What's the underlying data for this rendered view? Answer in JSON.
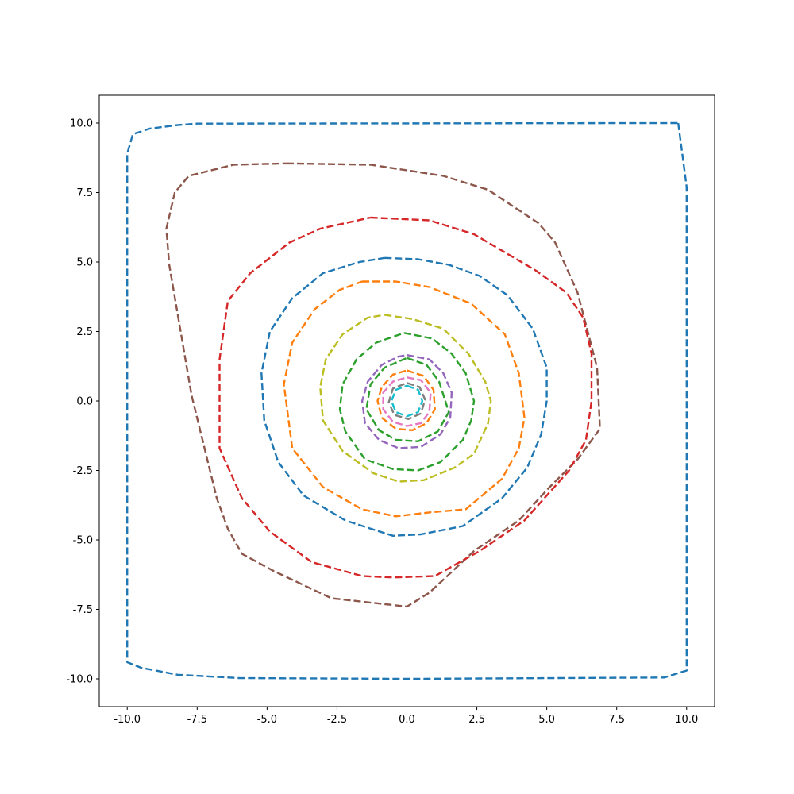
{
  "chart_data": {
    "type": "line",
    "title": "",
    "xlabel": "",
    "ylabel": "",
    "xlim": [
      -11,
      11
    ],
    "ylim": [
      -11,
      11
    ],
    "grid": false,
    "legend": "none",
    "line_style": "dashed",
    "x_ticks": [
      -10.0,
      -7.5,
      -5.0,
      -2.5,
      0.0,
      2.5,
      5.0,
      7.5,
      10.0
    ],
    "y_ticks": [
      -10.0,
      -7.5,
      -5.0,
      -2.5,
      0.0,
      2.5,
      5.0,
      7.5,
      10.0
    ],
    "x_tick_labels": [
      "-10.0",
      "-7.5",
      "-5.0",
      "-2.5",
      "0.0",
      "2.5",
      "5.0",
      "7.5",
      "10.0"
    ],
    "y_tick_labels": [
      "-10.0",
      "-7.5",
      "-5.0",
      "-2.5",
      "0.0",
      "2.5",
      "5.0",
      "7.5",
      "10.0"
    ],
    "series": [
      {
        "color": "#1f77b4",
        "points": [
          [
            9.7,
            10.0
          ],
          [
            10.0,
            7.7
          ],
          [
            10.0,
            -9.7
          ],
          [
            9.2,
            -9.95
          ],
          [
            0,
            -10.0
          ],
          [
            -6,
            -9.97
          ],
          [
            -8.2,
            -9.85
          ],
          [
            -9.5,
            -9.6
          ],
          [
            -10.0,
            -9.4
          ],
          [
            -10.0,
            8.9
          ],
          [
            -9.8,
            9.6
          ],
          [
            -9.2,
            9.8
          ],
          [
            -8.2,
            9.93
          ],
          [
            -7.5,
            9.98
          ],
          [
            9.7,
            10.0
          ]
        ]
      },
      {
        "color": "#8c564b",
        "points": [
          [
            -4.3,
            8.55
          ],
          [
            -1.3,
            8.5
          ],
          [
            1.3,
            8.1
          ],
          [
            2.9,
            7.6
          ],
          [
            4.7,
            6.4
          ],
          [
            5.3,
            5.7
          ],
          [
            6.1,
            3.9
          ],
          [
            6.8,
            1.2
          ],
          [
            6.9,
            -1.0
          ],
          [
            6.1,
            -2.1
          ],
          [
            5.1,
            -3.1
          ],
          [
            4.0,
            -4.3
          ],
          [
            2.4,
            -5.4
          ],
          [
            0.8,
            -6.9
          ],
          [
            0,
            -7.4
          ],
          [
            -2.7,
            -7.1
          ],
          [
            -4.8,
            -6.1
          ],
          [
            -5.9,
            -5.5
          ],
          [
            -6.4,
            -4.6
          ],
          [
            -6.8,
            -3.5
          ],
          [
            -7.7,
            0.2
          ],
          [
            -8.5,
            4.9
          ],
          [
            -8.6,
            6.2
          ],
          [
            -8.3,
            7.5
          ],
          [
            -7.8,
            8.1
          ],
          [
            -6.2,
            8.5
          ],
          [
            -4.3,
            8.55
          ]
        ]
      },
      {
        "color": "#d62728",
        "points": [
          [
            -1.3,
            6.6
          ],
          [
            0.8,
            6.5
          ],
          [
            2.4,
            6.0
          ],
          [
            4.6,
            4.7
          ],
          [
            5.7,
            3.9
          ],
          [
            6.3,
            3.0
          ],
          [
            6.6,
            1.7
          ],
          [
            6.6,
            0
          ],
          [
            6.4,
            -1.4
          ],
          [
            5.8,
            -2.5
          ],
          [
            4.2,
            -4.3
          ],
          [
            2.6,
            -5.4
          ],
          [
            1.0,
            -6.3
          ],
          [
            -0.5,
            -6.35
          ],
          [
            -1.6,
            -6.3
          ],
          [
            -3.4,
            -5.8
          ],
          [
            -4.9,
            -4.7
          ],
          [
            -5.9,
            -3.5
          ],
          [
            -6.7,
            -1.7
          ],
          [
            -6.7,
            1.5
          ],
          [
            -6.4,
            3.6
          ],
          [
            -5.6,
            4.6
          ],
          [
            -4.2,
            5.7
          ],
          [
            -3.1,
            6.2
          ],
          [
            -1.3,
            6.6
          ]
        ]
      },
      {
        "color": "#1f77b4",
        "points": [
          [
            -0.8,
            5.15
          ],
          [
            0.4,
            5.1
          ],
          [
            1.5,
            4.9
          ],
          [
            2.6,
            4.5
          ],
          [
            3.6,
            3.8
          ],
          [
            4.5,
            2.6
          ],
          [
            5.0,
            1.2
          ],
          [
            5.0,
            0
          ],
          [
            4.8,
            -1.2
          ],
          [
            4.3,
            -2.4
          ],
          [
            3.4,
            -3.5
          ],
          [
            2.0,
            -4.5
          ],
          [
            0.5,
            -4.8
          ],
          [
            -0.5,
            -4.85
          ],
          [
            -2.2,
            -4.3
          ],
          [
            -3.7,
            -3.4
          ],
          [
            -4.6,
            -2.2
          ],
          [
            -5.1,
            -0.7
          ],
          [
            -5.2,
            1.0
          ],
          [
            -4.9,
            2.5
          ],
          [
            -4.1,
            3.7
          ],
          [
            -3.0,
            4.6
          ],
          [
            -1.7,
            5.0
          ],
          [
            -0.8,
            5.15
          ]
        ]
      },
      {
        "color": "#ff7f0e",
        "points": [
          [
            -1.6,
            4.3
          ],
          [
            -0.4,
            4.3
          ],
          [
            0.8,
            4.1
          ],
          [
            2.3,
            3.5
          ],
          [
            3.5,
            2.4
          ],
          [
            4.0,
            1.0
          ],
          [
            4.2,
            -0.6
          ],
          [
            4.0,
            -1.7
          ],
          [
            3.4,
            -2.8
          ],
          [
            2.1,
            -3.9
          ],
          [
            0.9,
            -4.0
          ],
          [
            -0.4,
            -4.15
          ],
          [
            -1.6,
            -3.9
          ],
          [
            -3.0,
            -3.1
          ],
          [
            -4.1,
            -1.7
          ],
          [
            -4.4,
            0.6
          ],
          [
            -4.1,
            2.1
          ],
          [
            -3.3,
            3.3
          ],
          [
            -2.4,
            4.0
          ],
          [
            -1.6,
            4.3
          ]
        ]
      },
      {
        "color": "#bcbd22",
        "points": [
          [
            -0.8,
            3.1
          ],
          [
            0.2,
            2.95
          ],
          [
            1.3,
            2.6
          ],
          [
            2.2,
            1.7
          ],
          [
            2.8,
            0.7
          ],
          [
            3.0,
            0
          ],
          [
            2.9,
            -0.8
          ],
          [
            2.4,
            -1.9
          ],
          [
            1.7,
            -2.4
          ],
          [
            0.6,
            -2.85
          ],
          [
            -0.3,
            -2.9
          ],
          [
            -1.2,
            -2.6
          ],
          [
            -2.3,
            -1.8
          ],
          [
            -3.0,
            -0.7
          ],
          [
            -3.1,
            0.5
          ],
          [
            -2.9,
            1.5
          ],
          [
            -2.3,
            2.4
          ],
          [
            -1.4,
            3.0
          ],
          [
            -0.8,
            3.1
          ]
        ]
      },
      {
        "color": "#2ca02c",
        "points": [
          [
            -0.1,
            2.45
          ],
          [
            0.9,
            2.25
          ],
          [
            1.6,
            1.7
          ],
          [
            2.1,
            1.0
          ],
          [
            2.4,
            0
          ],
          [
            2.3,
            -0.7
          ],
          [
            2.0,
            -1.4
          ],
          [
            1.2,
            -2.2
          ],
          [
            0.4,
            -2.5
          ],
          [
            -0.5,
            -2.45
          ],
          [
            -1.5,
            -2.1
          ],
          [
            -2.2,
            -1.1
          ],
          [
            -2.4,
            -0.3
          ],
          [
            -2.3,
            0.6
          ],
          [
            -1.8,
            1.5
          ],
          [
            -1.1,
            2.1
          ],
          [
            -0.1,
            2.45
          ]
        ]
      },
      {
        "color": "#9467bd",
        "points": [
          [
            0,
            1.65
          ],
          [
            0.8,
            1.5
          ],
          [
            1.3,
            1.0
          ],
          [
            1.6,
            0.3
          ],
          [
            1.55,
            -0.6
          ],
          [
            1.2,
            -1.2
          ],
          [
            0.5,
            -1.65
          ],
          [
            -0.3,
            -1.7
          ],
          [
            -1.0,
            -1.4
          ],
          [
            -1.5,
            -0.8
          ],
          [
            -1.6,
            0
          ],
          [
            -1.4,
            0.7
          ],
          [
            -0.9,
            1.3
          ],
          [
            -0.3,
            1.6
          ],
          [
            0,
            1.65
          ]
        ]
      },
      {
        "color": "#2ca02c",
        "points": [
          [
            0,
            1.55
          ],
          [
            0.7,
            1.3
          ],
          [
            1.15,
            0.7
          ],
          [
            1.5,
            -0.4
          ],
          [
            1.1,
            -1.1
          ],
          [
            0.4,
            -1.45
          ],
          [
            -0.4,
            -1.4
          ],
          [
            -1.0,
            -1.05
          ],
          [
            -1.45,
            -0.3
          ],
          [
            -1.3,
            0.6
          ],
          [
            -0.8,
            1.2
          ],
          [
            0,
            1.55
          ]
        ]
      },
      {
        "color": "#ff7f0e",
        "points": [
          [
            0,
            1.1
          ],
          [
            0.6,
            0.9
          ],
          [
            0.95,
            0.4
          ],
          [
            1.0,
            -0.3
          ],
          [
            0.7,
            -0.8
          ],
          [
            0.2,
            -1.05
          ],
          [
            -0.4,
            -1.0
          ],
          [
            -0.9,
            -0.6
          ],
          [
            -1.05,
            0
          ],
          [
            -0.9,
            0.5
          ],
          [
            -0.5,
            0.95
          ],
          [
            0,
            1.1
          ]
        ]
      },
      {
        "color": "#e377c2",
        "points": [
          [
            0,
            0.85
          ],
          [
            0.5,
            0.75
          ],
          [
            0.85,
            0.3
          ],
          [
            0.8,
            -0.4
          ],
          [
            0.5,
            -0.8
          ],
          [
            0,
            -0.9
          ],
          [
            -0.5,
            -0.75
          ],
          [
            -0.85,
            -0.3
          ],
          [
            -0.85,
            0.3
          ],
          [
            -0.5,
            0.7
          ],
          [
            0,
            0.85
          ]
        ]
      },
      {
        "color": "#7f7f7f",
        "points": [
          [
            0,
            0.65
          ],
          [
            0.45,
            0.5
          ],
          [
            0.65,
            0.05
          ],
          [
            0.5,
            -0.45
          ],
          [
            0.05,
            -0.65
          ],
          [
            -0.45,
            -0.5
          ],
          [
            -0.65,
            -0.05
          ],
          [
            -0.5,
            0.45
          ],
          [
            0,
            0.65
          ]
        ]
      },
      {
        "color": "#17becf",
        "points": [
          [
            0,
            0.55
          ],
          [
            0.4,
            0.4
          ],
          [
            0.55,
            0
          ],
          [
            0.4,
            -0.4
          ],
          [
            0,
            -0.55
          ],
          [
            -0.4,
            -0.4
          ],
          [
            -0.55,
            0
          ],
          [
            -0.4,
            0.4
          ],
          [
            0,
            0.55
          ]
        ]
      }
    ]
  }
}
